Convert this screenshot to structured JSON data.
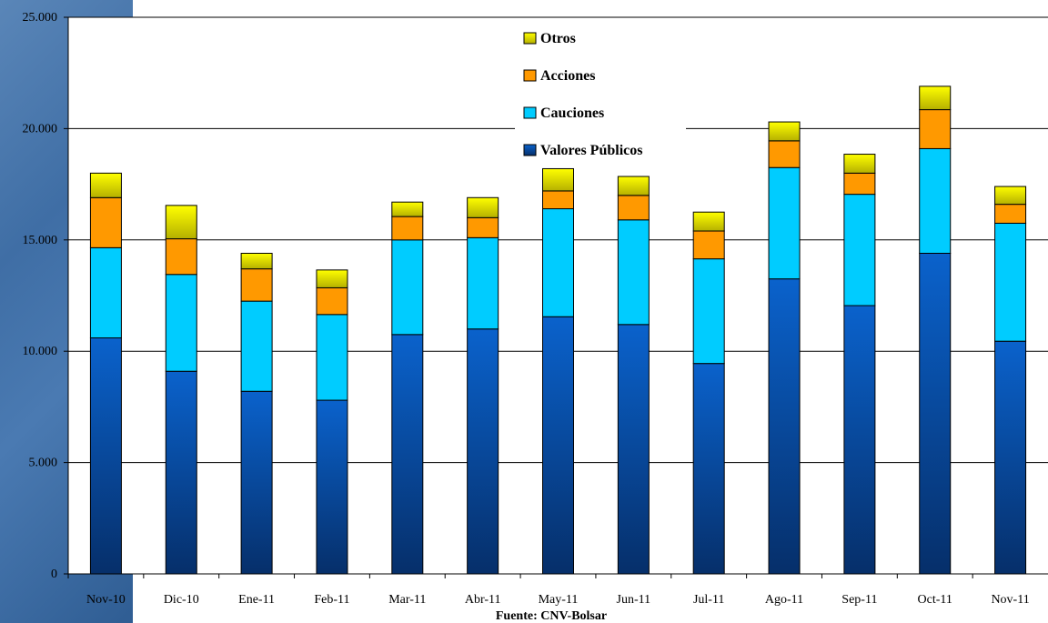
{
  "chart_data": {
    "type": "bar",
    "stacked": true,
    "categories": [
      "Nov-10",
      "Dic-10",
      "Ene-11",
      "Feb-11",
      "Mar-11",
      "Abr-11",
      "May-11",
      "Jun-11",
      "Jul-11",
      "Ago-11",
      "Sep-11",
      "Oct-11",
      "Nov-11"
    ],
    "series": [
      {
        "name": "Valores Públicos",
        "color": "#0a5fc4",
        "values": [
          10600,
          9100,
          8200,
          7800,
          10750,
          11000,
          11550,
          11200,
          9450,
          13250,
          12050,
          14400,
          10450
        ]
      },
      {
        "name": "Cauciones",
        "color": "#00ccff",
        "values": [
          4050,
          4350,
          4050,
          3850,
          4250,
          4100,
          4850,
          4700,
          4700,
          5000,
          5000,
          4700,
          5300
        ]
      },
      {
        "name": "Acciones",
        "color": "#ff9900",
        "values": [
          2250,
          1600,
          1450,
          1200,
          1050,
          900,
          800,
          1100,
          1250,
          1200,
          950,
          1750,
          850
        ]
      },
      {
        "name": "Otros",
        "color": "#f2f200",
        "values": [
          1100,
          1500,
          700,
          800,
          650,
          900,
          1000,
          850,
          850,
          850,
          850,
          1050,
          800
        ]
      }
    ],
    "ylim": [
      0,
      25000
    ],
    "yticks": [
      "0",
      "5.000",
      "10.000",
      "15.000",
      "20.000",
      "25.000"
    ],
    "grid": true,
    "legend_placement": "top-center",
    "source": "Fuente: CNV-Bolsar"
  }
}
